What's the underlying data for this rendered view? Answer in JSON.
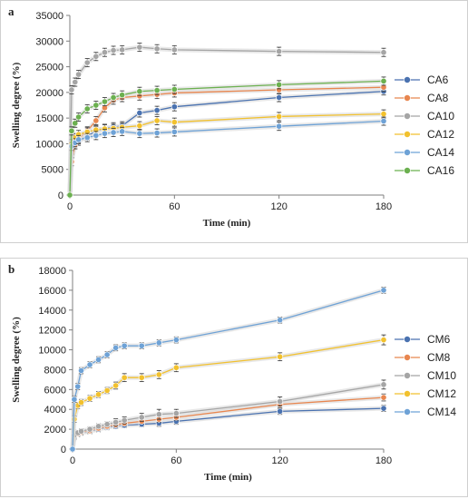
{
  "chart_data": [
    {
      "panel": "a",
      "type": "line",
      "xlabel": "Time (min)",
      "ylabel": "Swelling degree (%)",
      "xlim": [
        0,
        180
      ],
      "ylim": [
        0,
        35000
      ],
      "xticks": [
        0,
        60,
        120,
        180
      ],
      "yticks": [
        0,
        5000,
        10000,
        15000,
        20000,
        25000,
        30000,
        35000
      ],
      "legend_position": "right",
      "x": [
        0,
        1,
        3,
        5,
        10,
        15,
        20,
        25,
        30,
        40,
        50,
        60,
        120,
        180
      ],
      "series": [
        {
          "name": "CA6",
          "color": "#4a72b0",
          "values": [
            0,
            8000,
            9800,
            10500,
            11500,
            12500,
            13000,
            13300,
            13500,
            16000,
            16500,
            17200,
            19000,
            20200
          ],
          "errors": [
            300,
            800,
            800,
            800,
            800,
            800,
            800,
            800,
            800,
            800,
            800,
            800,
            800,
            700
          ]
        },
        {
          "name": "CA8",
          "color": "#e8864f",
          "values": [
            0,
            6500,
            9800,
            11000,
            12500,
            14500,
            17000,
            18500,
            19000,
            19300,
            19600,
            19900,
            20500,
            21000
          ],
          "errors": [
            300,
            800,
            800,
            800,
            800,
            800,
            800,
            800,
            800,
            800,
            800,
            800,
            800,
            800
          ]
        },
        {
          "name": "CA10",
          "color": "#a5a5a5",
          "values": [
            0,
            20500,
            22000,
            23500,
            25800,
            27000,
            27800,
            28200,
            28300,
            28800,
            28500,
            28300,
            28000,
            27800
          ],
          "errors": [
            300,
            800,
            800,
            800,
            800,
            800,
            800,
            800,
            800,
            800,
            800,
            800,
            800,
            800
          ]
        },
        {
          "name": "CA12",
          "color": "#f2c12e",
          "values": [
            0,
            10000,
            11200,
            11800,
            12300,
            12700,
            12900,
            13000,
            13200,
            13500,
            14500,
            14200,
            15300,
            15800
          ],
          "errors": [
            300,
            800,
            800,
            800,
            800,
            800,
            800,
            800,
            800,
            800,
            800,
            800,
            800,
            800
          ]
        },
        {
          "name": "CA14",
          "color": "#6ea2d6",
          "values": [
            0,
            9500,
            10200,
            10800,
            11200,
            11600,
            12000,
            12200,
            12400,
            12000,
            12100,
            12300,
            13400,
            14400
          ],
          "errors": [
            300,
            800,
            800,
            800,
            800,
            800,
            800,
            800,
            800,
            800,
            800,
            800,
            800,
            800
          ]
        },
        {
          "name": "CA16",
          "color": "#6bb04f",
          "values": [
            0,
            12500,
            14000,
            15200,
            16800,
            17500,
            18200,
            19000,
            19500,
            20200,
            20400,
            20600,
            21500,
            22200
          ],
          "errors": [
            300,
            800,
            800,
            800,
            800,
            800,
            800,
            800,
            800,
            800,
            800,
            800,
            800,
            800
          ]
        }
      ]
    },
    {
      "panel": "b",
      "type": "line",
      "xlabel": "Time (min)",
      "ylabel": "Swelling degree (%)",
      "xlim": [
        0,
        180
      ],
      "ylim": [
        0,
        18000
      ],
      "xticks": [
        0,
        60,
        120,
        180
      ],
      "yticks": [
        0,
        2000,
        4000,
        6000,
        8000,
        10000,
        12000,
        14000,
        16000,
        18000
      ],
      "legend_position": "right",
      "x": [
        0,
        1,
        3,
        5,
        10,
        15,
        20,
        25,
        30,
        40,
        50,
        60,
        120,
        180
      ],
      "series": [
        {
          "name": "CM6",
          "color": "#4a72b0",
          "values": [
            0,
            1200,
            1500,
            1650,
            1800,
            2000,
            2200,
            2300,
            2400,
            2500,
            2600,
            2800,
            3800,
            4100
          ],
          "errors": [
            150,
            250,
            250,
            250,
            250,
            250,
            250,
            250,
            250,
            250,
            300,
            300,
            300,
            300
          ]
        },
        {
          "name": "CM8",
          "color": "#e8864f",
          "values": [
            0,
            1300,
            1550,
            1700,
            1850,
            2100,
            2300,
            2450,
            2600,
            2800,
            3000,
            3200,
            4500,
            5200
          ],
          "errors": [
            150,
            250,
            250,
            250,
            250,
            250,
            250,
            250,
            250,
            250,
            300,
            300,
            350,
            350
          ]
        },
        {
          "name": "CM10",
          "color": "#a5a5a5",
          "values": [
            0,
            1400,
            1650,
            1800,
            2000,
            2300,
            2500,
            2700,
            2900,
            3200,
            3500,
            3600,
            4800,
            6500
          ],
          "errors": [
            150,
            250,
            250,
            250,
            250,
            250,
            250,
            350,
            350,
            400,
            500,
            400,
            450,
            450
          ]
        },
        {
          "name": "CM12",
          "color": "#f2c12e",
          "values": [
            0,
            3000,
            4400,
            4700,
            5100,
            5500,
            5900,
            6400,
            7200,
            7200,
            7500,
            8200,
            9300,
            11000
          ],
          "errors": [
            200,
            300,
            300,
            300,
            300,
            300,
            300,
            350,
            400,
            400,
            400,
            400,
            400,
            500
          ]
        },
        {
          "name": "CM14",
          "color": "#6ea2d6",
          "values": [
            0,
            5000,
            6300,
            7900,
            8500,
            9000,
            9500,
            10200,
            10400,
            10400,
            10700,
            11000,
            13000,
            16000
          ],
          "errors": [
            200,
            300,
            300,
            300,
            300,
            300,
            300,
            300,
            300,
            300,
            300,
            300,
            300,
            300
          ]
        }
      ]
    }
  ]
}
